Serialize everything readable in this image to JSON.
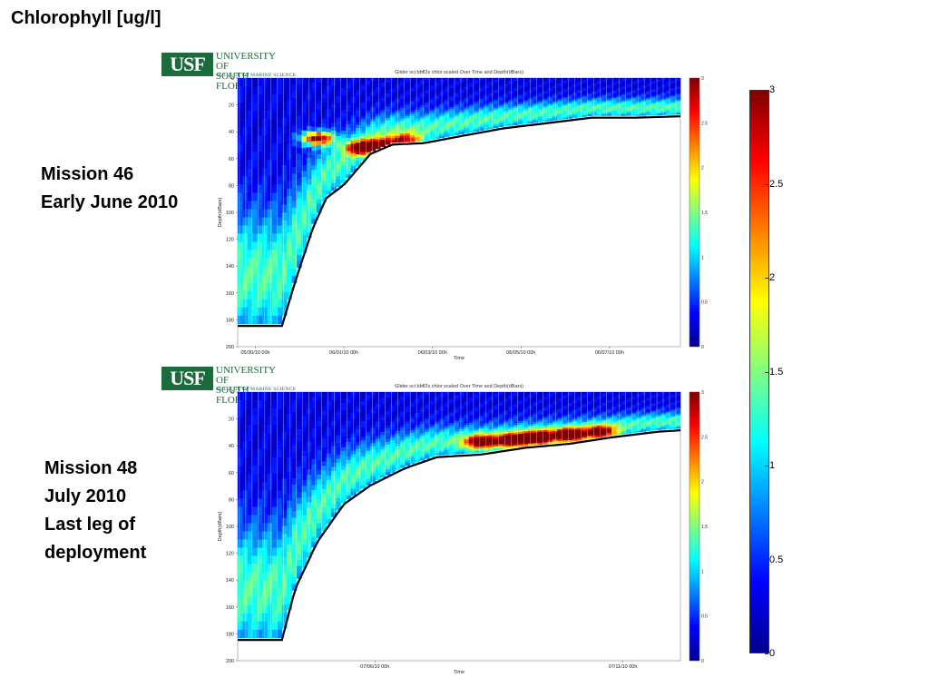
{
  "page_title": "Chlorophyll  [ug/l]",
  "missions": [
    {
      "lines": [
        "Mission 46",
        "Early June 2010"
      ]
    },
    {
      "lines": [
        "Mission 48",
        "July 2010",
        "Last leg of",
        "deployment"
      ]
    }
  ],
  "logo": {
    "abbrev": "USF",
    "line1": "UNIVERSITY OF",
    "line2": "SOUTH FLORIDA",
    "line3": "COLLEGE OF MARINE SCIENCE"
  },
  "colorbar": {
    "ticks": [
      "3",
      "2.5",
      "2",
      "1.5",
      "1",
      "0.5",
      "0"
    ],
    "colors": [
      "#00008f",
      "#0000ff",
      "#0080ff",
      "#00ffff",
      "#80ff80",
      "#ffff00",
      "#ff8000",
      "#ff0000",
      "#800000"
    ]
  },
  "chart_data": [
    {
      "type": "heatmap",
      "title": "Glider sci bbfl2s chlor scaled Over Time and Depth(dBars)",
      "xlabel": "Time",
      "ylabel": "Depth(dBars)",
      "yticks": [
        "0",
        "20",
        "40",
        "60",
        "80",
        "100",
        "120",
        "140",
        "160",
        "180",
        "200"
      ],
      "ylim": [
        200,
        0
      ],
      "xticks": [
        "05/30/10 00h",
        "06/01/10 00h",
        "06/03/10 00h",
        "06/05/10 00h",
        "06/07/10 00h"
      ],
      "colorbar_ticks": [
        "3",
        "2.5",
        "2",
        "1.5",
        "1",
        "0.5",
        "0"
      ],
      "clim": [
        0,
        3
      ],
      "bottom_depth": [
        [
          0,
          183
        ],
        [
          0.1,
          183
        ],
        [
          0.13,
          150
        ],
        [
          0.17,
          110
        ],
        [
          0.2,
          88
        ],
        [
          0.24,
          78
        ],
        [
          0.3,
          55
        ],
        [
          0.35,
          48
        ],
        [
          0.42,
          47
        ],
        [
          0.5,
          42
        ],
        [
          0.6,
          36
        ],
        [
          0.7,
          32
        ],
        [
          0.8,
          28
        ],
        [
          0.9,
          28
        ],
        [
          1,
          27
        ]
      ],
      "high_patches": [
        [
          0.18,
          45,
          2.8
        ],
        [
          0.28,
          52,
          2.6
        ],
        [
          0.33,
          50,
          2.2
        ],
        [
          0.38,
          46,
          1.8
        ]
      ]
    },
    {
      "type": "heatmap",
      "title": "Glider sci bbfl2s chlor scaled Over Time and Depth(dBars)",
      "xlabel": "Time",
      "ylabel": "Depth(dBars)",
      "yticks": [
        "0",
        "20",
        "40",
        "60",
        "80",
        "100",
        "120",
        "140",
        "160",
        "180",
        "200"
      ],
      "ylim": [
        200,
        0
      ],
      "xticks": [
        "07/06/10 00h",
        "07/11/10 00h"
      ],
      "colorbar_ticks": [
        "3",
        "2.5",
        "2",
        "1.5",
        "1",
        "0.5",
        "0"
      ],
      "clim": [
        0,
        3
      ],
      "bottom_depth": [
        [
          0,
          183
        ],
        [
          0.1,
          183
        ],
        [
          0.13,
          145
        ],
        [
          0.18,
          110
        ],
        [
          0.24,
          82
        ],
        [
          0.3,
          68
        ],
        [
          0.38,
          55
        ],
        [
          0.45,
          47
        ],
        [
          0.55,
          45
        ],
        [
          0.65,
          40
        ],
        [
          0.75,
          37
        ],
        [
          0.85,
          32
        ],
        [
          0.95,
          28
        ],
        [
          1,
          27
        ]
      ],
      "high_patches": [
        [
          0.55,
          37,
          2.4
        ],
        [
          0.62,
          36,
          2.7
        ],
        [
          0.68,
          34,
          2.9
        ],
        [
          0.75,
          32,
          2.8
        ],
        [
          0.82,
          30,
          2.3
        ]
      ]
    }
  ]
}
